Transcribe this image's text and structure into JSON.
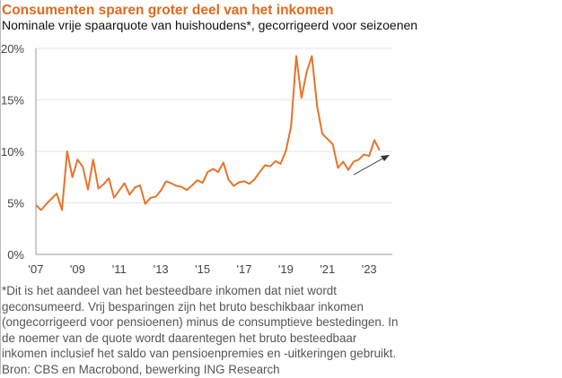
{
  "title": "Consumenten sparen groter deel van het inkomen",
  "subtitle": "Nominale vrije spaarquote van huishoudens*, gecorrigeerd voor seizoenen",
  "footnote": [
    "*Dit is het aandeel van het besteedbare inkomen dat niet wordt",
    "geconsumeerd. Vrij besparingen zijn het bruto beschikbaar inkomen",
    "(ongecorrigeerd voor pensioenen) minus de consumptieve bestedingen. In",
    "de noemer van de quote wordt daarentegen  het bruto besteedbaar",
    "inkomen inclusief het saldo van pensioenpremies en -uitkeringen gebruikt."
  ],
  "source": "Bron: CBS en Macrobond, bewerking ING Research",
  "colors": {
    "line": "#e8732a",
    "title": "#e06a1e",
    "arrow": "#333333",
    "grid": "#e6e6e6"
  },
  "chart_data": {
    "type": "line",
    "x_start": "2007Q1",
    "frequency": "quarterly",
    "series": [
      {
        "values": [
          4.8,
          4.3,
          4.9,
          5.4,
          5.9,
          4.3,
          10.0,
          7.5,
          9.2,
          8.5,
          6.3,
          9.2,
          6.4,
          6.8,
          7.4,
          5.5,
          6.2,
          6.9,
          5.8,
          6.5,
          6.7,
          4.9,
          5.5,
          5.6,
          6.2,
          7.1,
          6.9,
          6.65,
          6.55,
          6.25,
          6.7,
          7.2,
          6.95,
          8.0,
          8.3,
          8.0,
          8.9,
          7.25,
          6.65,
          7.0,
          7.1,
          6.85,
          7.3,
          8.0,
          8.65,
          8.55,
          9.05,
          8.8,
          10.05,
          12.4,
          19.25,
          15.2,
          17.7,
          19.25,
          14.4,
          11.7,
          11.2,
          10.7,
          8.4,
          9.0,
          8.2,
          9.0,
          9.2,
          9.7,
          9.55,
          11.1,
          10.1
        ]
      }
    ],
    "yticks": [
      "0%",
      "5%",
      "10%",
      "15%",
      "20%"
    ],
    "ytick_values": [
      0,
      5,
      10,
      15,
      20
    ],
    "xticks": [
      "'07",
      "'09",
      "'11",
      "'13",
      "'15",
      "'17",
      "'19",
      "'21",
      "'23"
    ],
    "xtick_years": [
      2007,
      2009,
      2011,
      2013,
      2015,
      2017,
      2019,
      2021,
      2023
    ],
    "ylim": [
      0,
      20
    ],
    "grid": "horizontal",
    "annotation": "upward-trend-arrow"
  }
}
